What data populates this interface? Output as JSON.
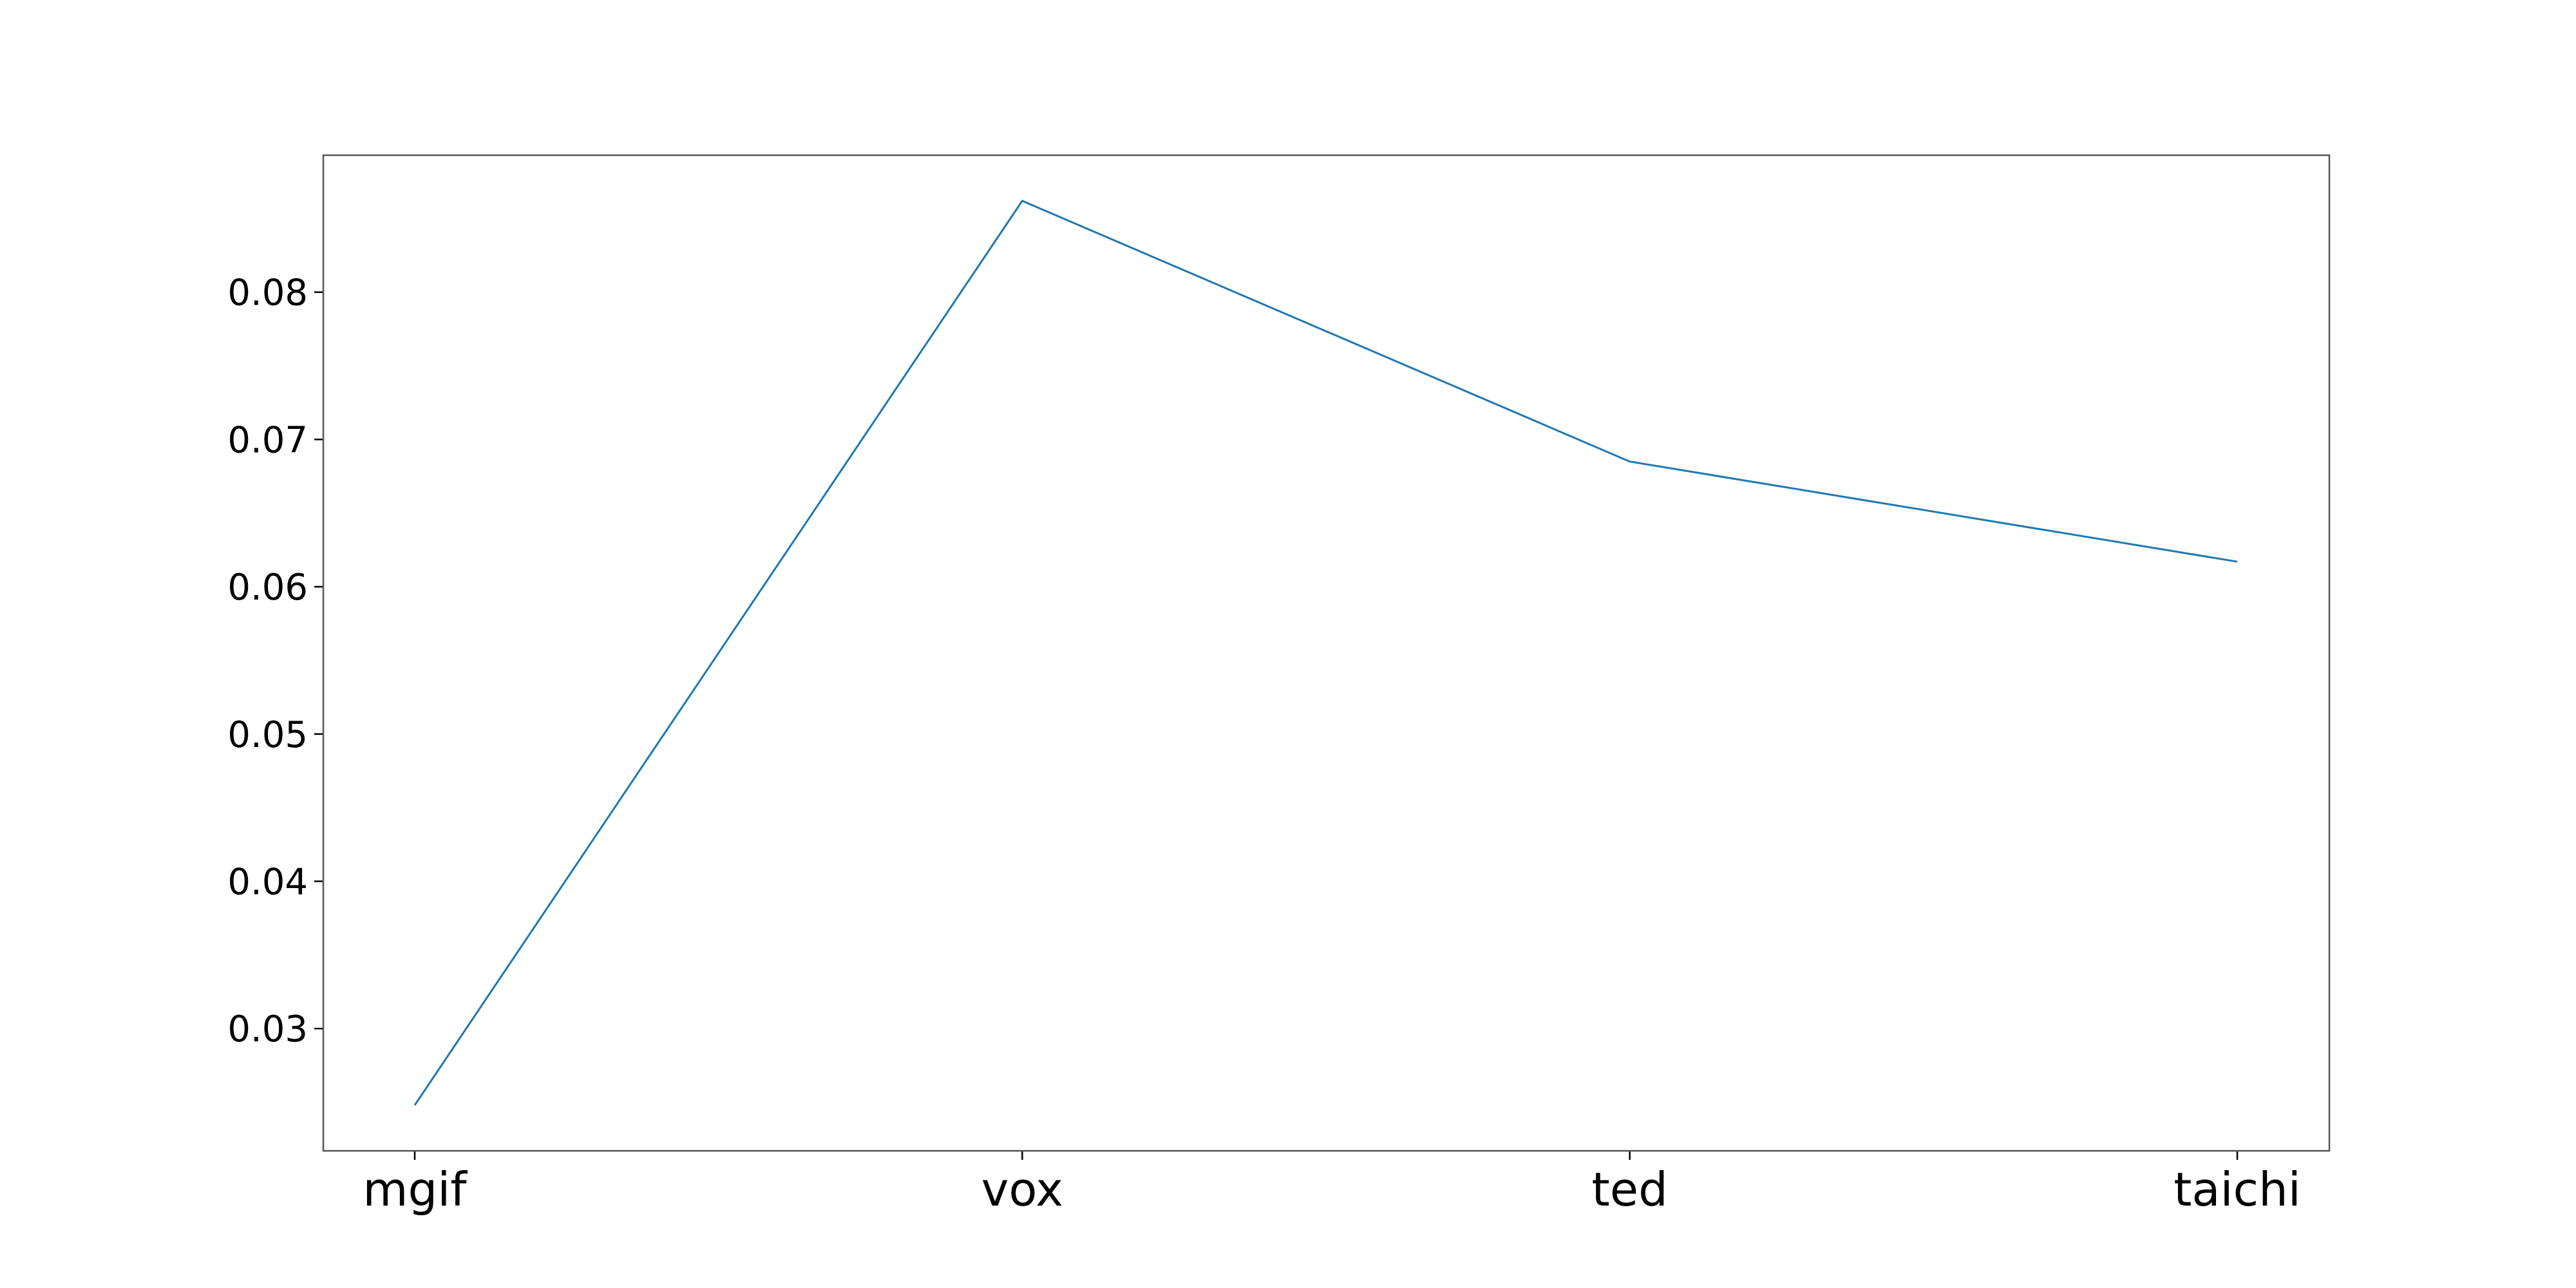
{
  "chart_data": {
    "type": "line",
    "title": "",
    "xlabel": "",
    "ylabel": "",
    "categories": [
      "mgif",
      "vox",
      "ted",
      "taichi"
    ],
    "series": [
      {
        "values": [
          0.0248,
          0.0862,
          0.0685,
          0.0617
        ],
        "color": "#1f77b4"
      }
    ],
    "ylim": [
      0.0217,
      0.0893
    ],
    "yticks": [
      0.03,
      0.04,
      0.05,
      0.06,
      0.07,
      0.08
    ],
    "ytick_labels": [
      "0.03",
      "0.04",
      "0.05",
      "0.06",
      "0.07",
      "0.08"
    ],
    "grid": false,
    "legend": "none"
  }
}
